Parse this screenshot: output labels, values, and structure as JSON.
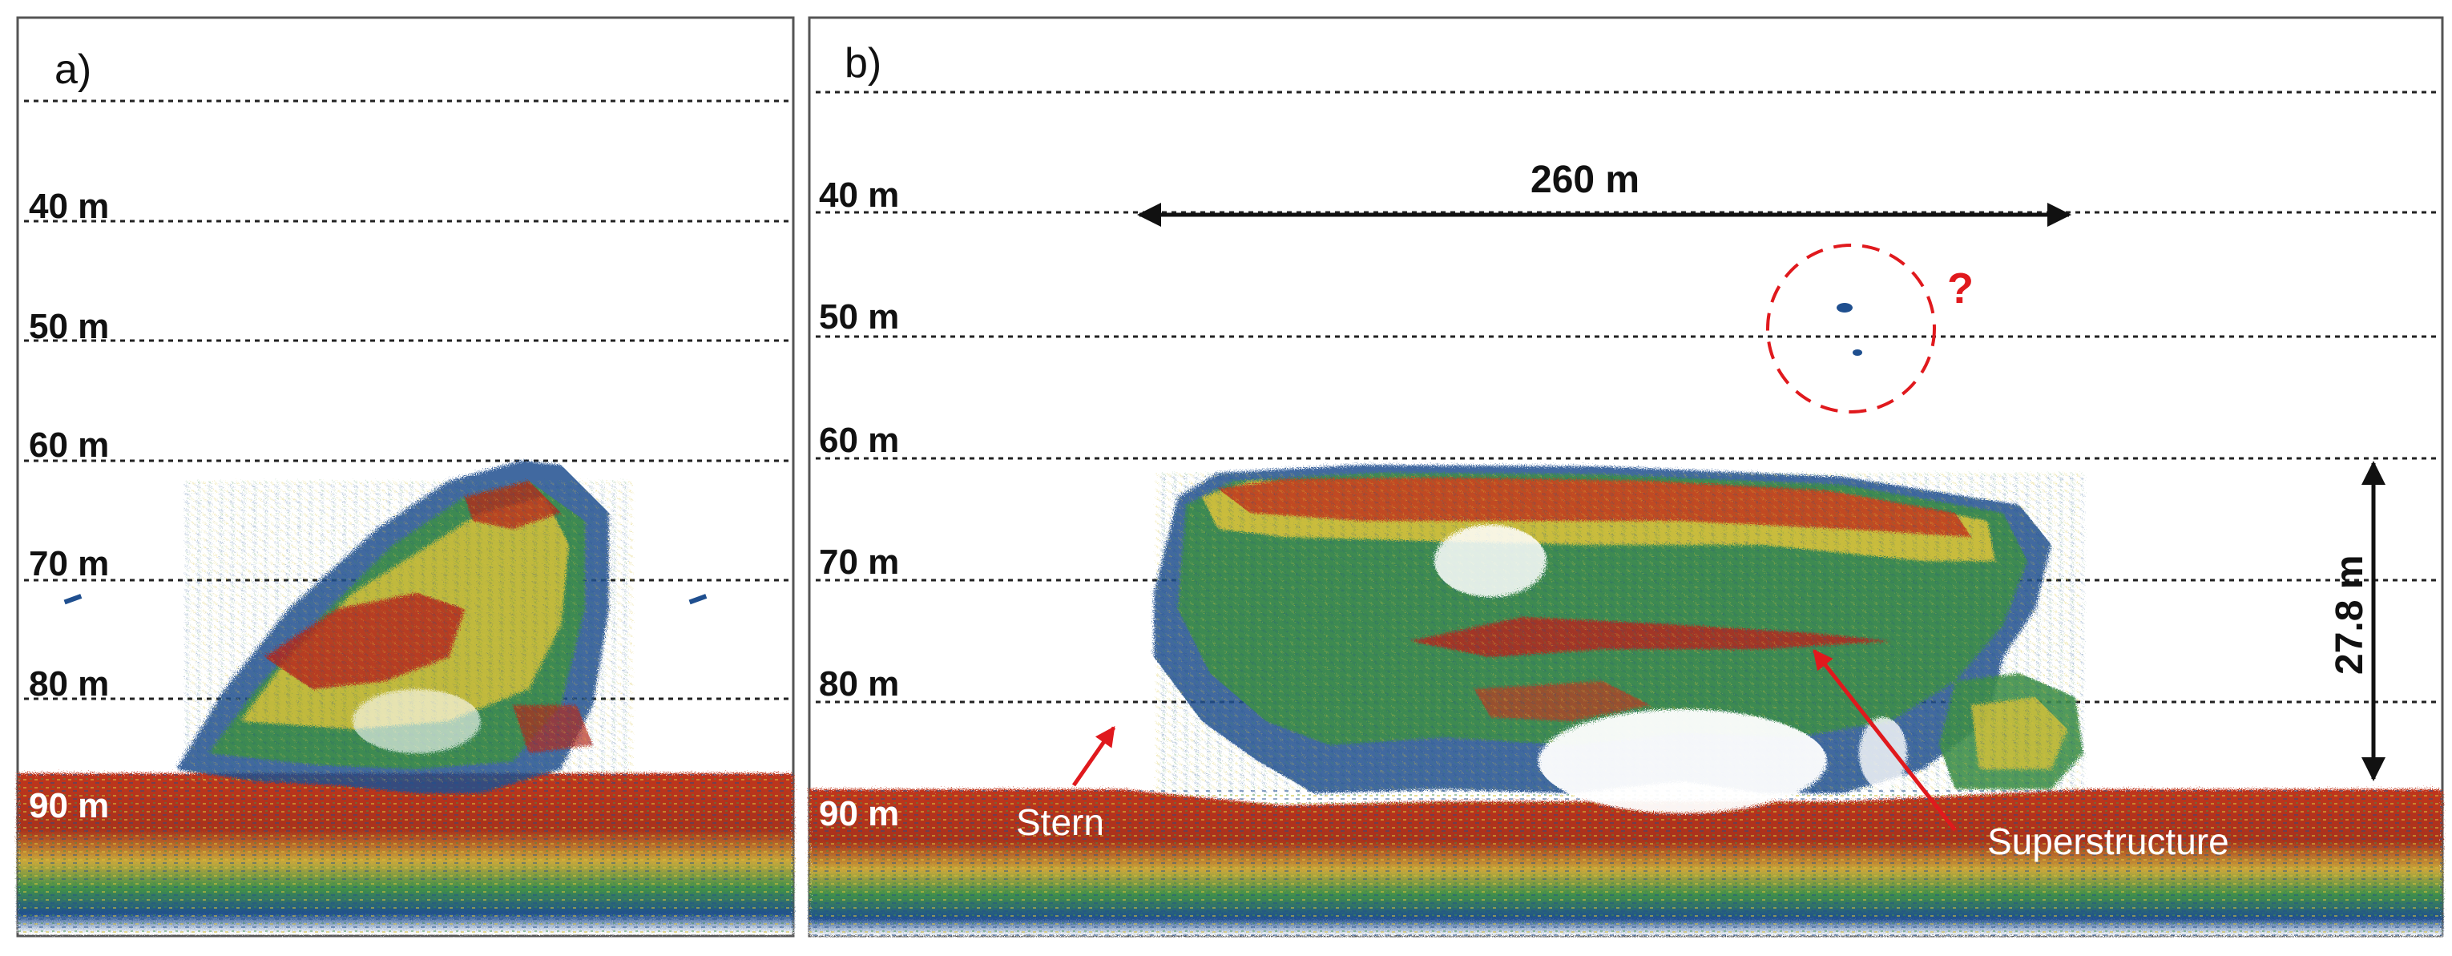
{
  "panels": [
    {
      "id": "a",
      "label": "a)",
      "depth_labels": [
        "40 m",
        "50 m",
        "60 m",
        "70 m",
        "80 m",
        "90 m"
      ]
    },
    {
      "id": "b",
      "label": "b)",
      "depth_labels": [
        "40 m",
        "50 m",
        "60 m",
        "70 m",
        "80 m",
        "90 m"
      ],
      "length_label": "260 m",
      "height_label": "27.8 m",
      "unknown_marker": "?",
      "annotations": {
        "stern": "Stern",
        "superstructure": "Superstructure"
      }
    }
  ],
  "colors": {
    "echo_red": "#b5271d",
    "echo_orange": "#d9601f",
    "echo_yellow": "#d8c23a",
    "echo_green": "#3f8f4a",
    "echo_blue": "#1f4f8f",
    "annotation_red": "#e0191d"
  }
}
